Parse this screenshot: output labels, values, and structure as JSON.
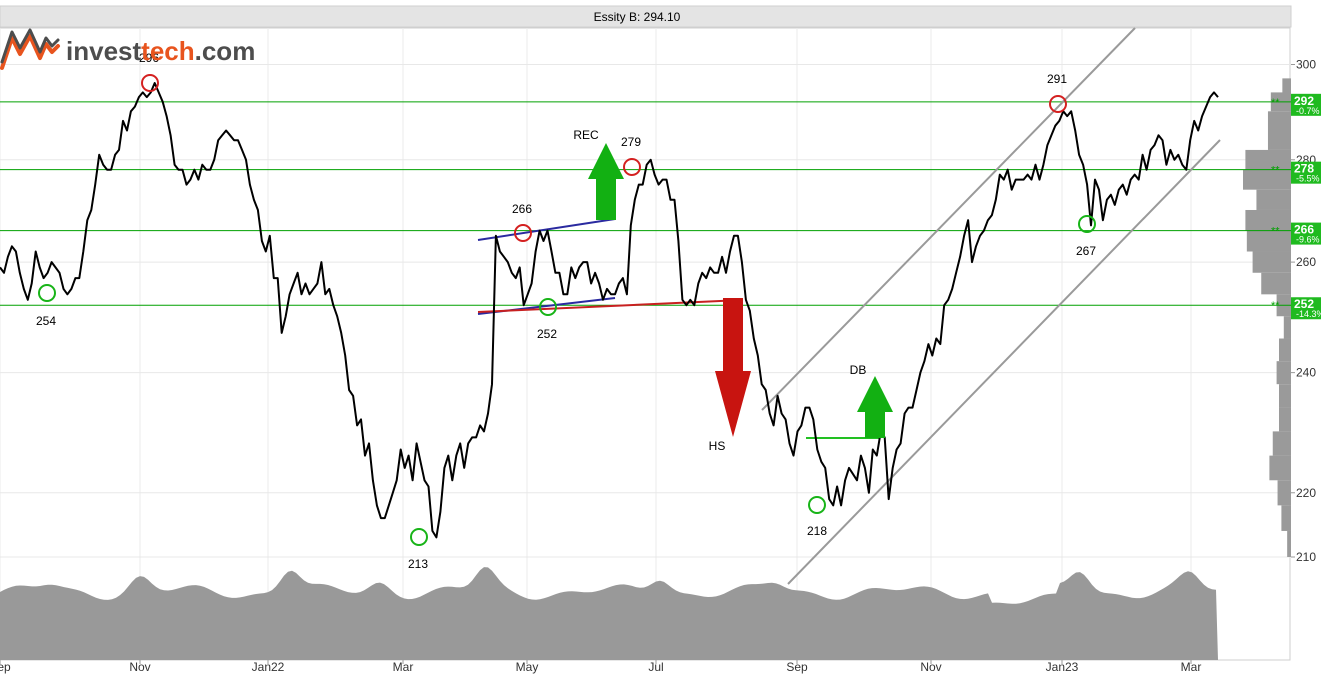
{
  "title_bar": {
    "text": "Essity B: 294.10"
  },
  "logo": {
    "text_part1": "invest",
    "text_part2": "tech",
    "text_part3": ".com",
    "color_dark": "#4d4d4d",
    "color_accent": "#e8541e"
  },
  "chart_data": {
    "type": "line",
    "title": "Essity B: 294.10",
    "y_scale": "log",
    "ylim": [
      210,
      305
    ],
    "y_ticks": [
      210,
      220,
      240,
      260,
      280,
      300
    ],
    "x_ticks": [
      "Sep",
      "Nov",
      "Jan22",
      "Mar",
      "May",
      "Jul",
      "Sep",
      "Nov",
      "Jan23",
      "Mar"
    ],
    "grid": true,
    "legend": "none",
    "series": [
      {
        "values": [
          259,
          258,
          261,
          263,
          262,
          258,
          255,
          253,
          256,
          262,
          259,
          257,
          258,
          260,
          259,
          258,
          255,
          254,
          255,
          257,
          257,
          262,
          268,
          270,
          275,
          281,
          279,
          278,
          278,
          281,
          282,
          288,
          286,
          290,
          291,
          293,
          294,
          293,
          294,
          296,
          294,
          292,
          289,
          285,
          279,
          278,
          278,
          275,
          276,
          278,
          276,
          279,
          278,
          278,
          280,
          284,
          285,
          286,
          285,
          284,
          284,
          282,
          280,
          275,
          272,
          270,
          264,
          262,
          265,
          257,
          257,
          247,
          250,
          254,
          256,
          258,
          254,
          256,
          254,
          255,
          256,
          260,
          254,
          255,
          252,
          250,
          247,
          243,
          237,
          236,
          231,
          232,
          226,
          228,
          222,
          218,
          216,
          216,
          218,
          220,
          222,
          227,
          224,
          226,
          222,
          228,
          225,
          222,
          221,
          214,
          213,
          217,
          224,
          226,
          222,
          226,
          228,
          224,
          228,
          229,
          229,
          231,
          230,
          233,
          238,
          265,
          262,
          261,
          260,
          258,
          257,
          259,
          252,
          254,
          256,
          262,
          266,
          264,
          266,
          262,
          258,
          258,
          254,
          254,
          259,
          257,
          259,
          260,
          260,
          256,
          258,
          256,
          253,
          255,
          254,
          254,
          256,
          257,
          254,
          267,
          272,
          275,
          275,
          279,
          280,
          277,
          275,
          276,
          276,
          272,
          272,
          264,
          253,
          252,
          253,
          252,
          256,
          258,
          257,
          259,
          258,
          258,
          261,
          258,
          262,
          265,
          265,
          260,
          253,
          251,
          246,
          243,
          238,
          237,
          233,
          231,
          236,
          233,
          232,
          228,
          226,
          230,
          231,
          234,
          234,
          232,
          227,
          225,
          224,
          219,
          218,
          221,
          218,
          222,
          224,
          223,
          222,
          226,
          224,
          220,
          227,
          226,
          230,
          229,
          219,
          224,
          227,
          228,
          233,
          234,
          234,
          237,
          240,
          242,
          245,
          243,
          246,
          245,
          252,
          253,
          255,
          258,
          261,
          265,
          268,
          260,
          263,
          265,
          266,
          268,
          269,
          272,
          277,
          276,
          278,
          274,
          276,
          276,
          276,
          277,
          276,
          279,
          276,
          279,
          283,
          285,
          287,
          288,
          290,
          289,
          290,
          286,
          281,
          279,
          275,
          267,
          276,
          274,
          268,
          272,
          273,
          271,
          274,
          275,
          273,
          276,
          277,
          276,
          281,
          278,
          282,
          283,
          285,
          284,
          279,
          282,
          280,
          281,
          279,
          278,
          284,
          288,
          286,
          289,
          291,
          293,
          294,
          293
        ],
        "color": "#000000"
      }
    ],
    "horizontal_levels": [
      {
        "value": 292,
        "label": "292",
        "pct": "-0.7%"
      },
      {
        "value": 278,
        "label": "278",
        "pct": "-5.5%"
      },
      {
        "value": 266,
        "label": "266",
        "pct": "-9.6%"
      },
      {
        "value": 252,
        "label": "252",
        "pct": "-14.3%"
      }
    ],
    "annotations": [
      {
        "text": "296",
        "kind": "top"
      },
      {
        "text": "254",
        "kind": "bottom"
      },
      {
        "text": "213",
        "kind": "bottom"
      },
      {
        "text": "266",
        "kind": "top"
      },
      {
        "text": "252",
        "kind": "bottom"
      },
      {
        "text": "279",
        "kind": "top"
      },
      {
        "text": "218",
        "kind": "bottom"
      },
      {
        "text": "291",
        "kind": "top"
      },
      {
        "text": "267",
        "kind": "bottom"
      },
      {
        "text": "REC",
        "kind": "pattern"
      },
      {
        "text": "HS",
        "kind": "pattern"
      },
      {
        "text": "DB",
        "kind": "pattern"
      }
    ],
    "volume_profile_levels": [
      295,
      292,
      288,
      284,
      280,
      276,
      272,
      268,
      264,
      260,
      256,
      252,
      248,
      244,
      240,
      236,
      232,
      228,
      224,
      220,
      216,
      212
    ],
    "volume_profile_widths": [
      0.18,
      0.42,
      0.48,
      0.48,
      0.95,
      1.0,
      0.72,
      0.95,
      0.92,
      0.8,
      0.62,
      0.3,
      0.15,
      0.25,
      0.3,
      0.25,
      0.25,
      0.38,
      0.45,
      0.28,
      0.2,
      0.08
    ],
    "colors": {
      "support_line": "#00a000",
      "top_circle": "#d42020",
      "bottom_circle": "#18b418",
      "up_arrow": "#12b012",
      "down_arrow": "#c81410",
      "volume": "#999999",
      "channel": "#9a9a9a",
      "level_badge": "#1fba1f"
    }
  }
}
